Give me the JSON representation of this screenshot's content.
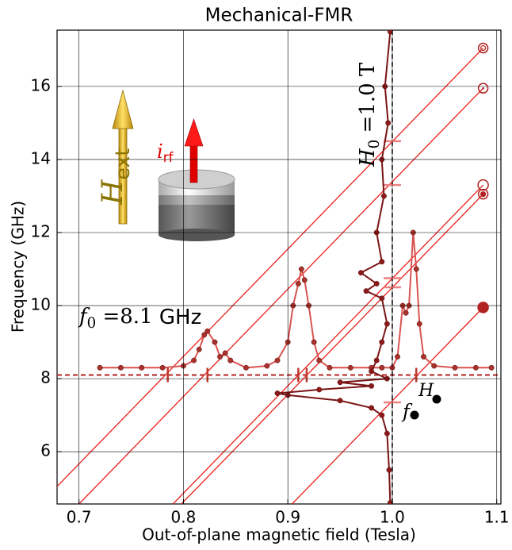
{
  "chart_data": {
    "type": "line",
    "title": "Mechanical-FMR",
    "x_label": "Out-of-plane magnetic field (Tesla)",
    "y_label": "Frequency (GHz)",
    "xlim": [
      0.679,
      1.104
    ],
    "ylim": [
      4.57,
      17.54
    ],
    "xticks": [
      0.7,
      0.8,
      0.9,
      {
        "value": 1,
        "label": "1.0"
      },
      1.1
    ],
    "yticks": [
      6,
      8,
      10,
      12,
      14,
      16
    ],
    "grid": true,
    "series": [
      {
        "x": [
          0.72,
          0.74,
          0.76,
          0.78,
          0.8,
          0.81,
          0.815,
          0.82,
          0.823,
          0.83,
          0.835,
          0.84,
          0.845,
          0.86,
          0.88,
          0.89,
          0.9,
          0.905,
          0.91,
          0.913,
          0.916,
          0.92,
          0.925,
          0.93,
          0.94,
          0.96,
          0.98,
          0.99,
          1.0,
          1.005,
          1.01,
          1.013,
          1.016,
          1.02,
          1.023,
          1.026,
          1.03,
          1.04,
          1.06,
          1.08,
          1.095
        ],
        "values": [
          8.3,
          8.3,
          8.3,
          8.3,
          8.35,
          8.5,
          8.8,
          9.2,
          9.3,
          9.0,
          8.6,
          8.7,
          8.5,
          8.3,
          8.35,
          8.5,
          9.0,
          10.0,
          10.6,
          11.0,
          10.7,
          10.0,
          9.0,
          8.5,
          8.3,
          8.3,
          8.3,
          8.3,
          8.3,
          8.6,
          10.0,
          9.8,
          10.0,
          12.0,
          11.0,
          9.5,
          8.6,
          8.35,
          8.3,
          8.3,
          8.3
        ],
        "color": "#d9534f",
        "marker_color": "#a8322c"
      },
      {
        "x": [
          0.998,
          0.993,
          0.996,
          0.99,
          0.992,
          0.985,
          0.99,
          0.97,
          0.985,
          0.975,
          0.99,
          0.995,
          0.99,
          0.985,
          0.98,
          0.995,
          0.95,
          0.98,
          0.93,
          0.89,
          0.9,
          0.95,
          0.98,
          0.99,
          0.995,
          0.997,
          0.998
        ],
        "values": [
          17.5,
          16,
          15,
          14,
          13,
          12,
          11.2,
          10.9,
          10.6,
          10.4,
          10.2,
          9.5,
          9,
          8.5,
          8.2,
          8.0,
          7.9,
          7.8,
          7.7,
          7.6,
          7.55,
          7.4,
          7.2,
          7.0,
          6.5,
          5.5,
          4.6
        ],
        "color": "#7a1414",
        "marker_color": "#8b1a1a"
      }
    ],
    "resonance_lines": [
      {
        "x": [
          0.679,
          1.087
        ],
        "values": [
          5.05,
          17.05
        ]
      },
      {
        "x": [
          0.7,
          1.087
        ],
        "values": [
          4.57,
          15.95
        ]
      },
      {
        "x": [
          0.79,
          1.087
        ],
        "values": [
          4.57,
          13.3
        ]
      },
      {
        "x": [
          0.798,
          1.087
        ],
        "values": [
          4.57,
          13.05
        ]
      },
      {
        "x": [
          0.904,
          1.087
        ],
        "values": [
          4.57,
          9.95
        ]
      }
    ],
    "resonance_color": "#e8201c",
    "end_markers": {
      "x": 1.087,
      "values": [
        17.05,
        15.95,
        13.3,
        13.05,
        9.95
      ]
    },
    "field_ticks": [
      0.785,
      0.823,
      0.91,
      0.918,
      1.023
    ],
    "freq_ticks": [
      14.5,
      13.3,
      10.75,
      10.5,
      7.35
    ],
    "ref_lines": {
      "x": 1,
      "y": 8.1
    },
    "annotations": {
      "f0": {
        "main": "f",
        "sub": "0",
        "rest": " =8.1",
        "unit": " GHz"
      },
      "H0": {
        "main": "H",
        "sub": "0",
        "rest": " =1.0 T"
      },
      "Hext": {
        "main": "H",
        "sub": "ext"
      },
      "irf": {
        "main": "i",
        "sub": "rf"
      },
      "legend_symbols": [
        "f",
        "H"
      ]
    }
  }
}
